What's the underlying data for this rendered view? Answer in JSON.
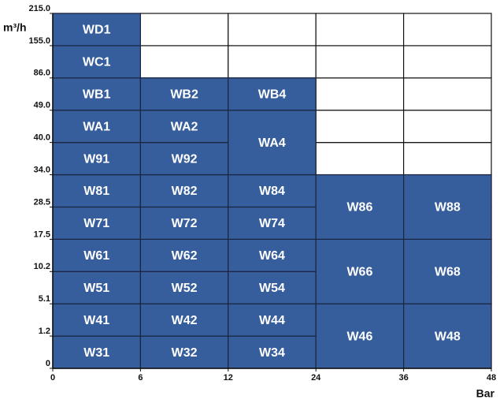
{
  "y_axis": {
    "unit": "m³/h",
    "ticks": [
      "0",
      "1.2",
      "5.1",
      "10.2",
      "17.5",
      "28.5",
      "34.0",
      "40.0",
      "49.0",
      "86.0",
      "155.0",
      "215.0"
    ]
  },
  "x_axis": {
    "unit": "Bar",
    "ticks": [
      "0",
      "6",
      "12",
      "24",
      "36",
      "48"
    ]
  },
  "columns": [
    [
      "W31",
      "W41",
      "W51",
      "W61",
      "W71",
      "W81",
      "W91",
      "WA1",
      "WB1",
      "WC1",
      "WD1"
    ],
    [
      "W32",
      "W42",
      "W52",
      "W62",
      "W72",
      "W82",
      "W92",
      "WA2",
      "WB2"
    ],
    [
      "W34",
      "W44",
      "W54",
      "W64",
      "W74",
      "W84",
      "WA4",
      null,
      "WB4"
    ],
    [
      "W46",
      null,
      "W66",
      null,
      "W86",
      null
    ],
    [
      "W48",
      null,
      "W68",
      null,
      "W88",
      null
    ]
  ]
}
